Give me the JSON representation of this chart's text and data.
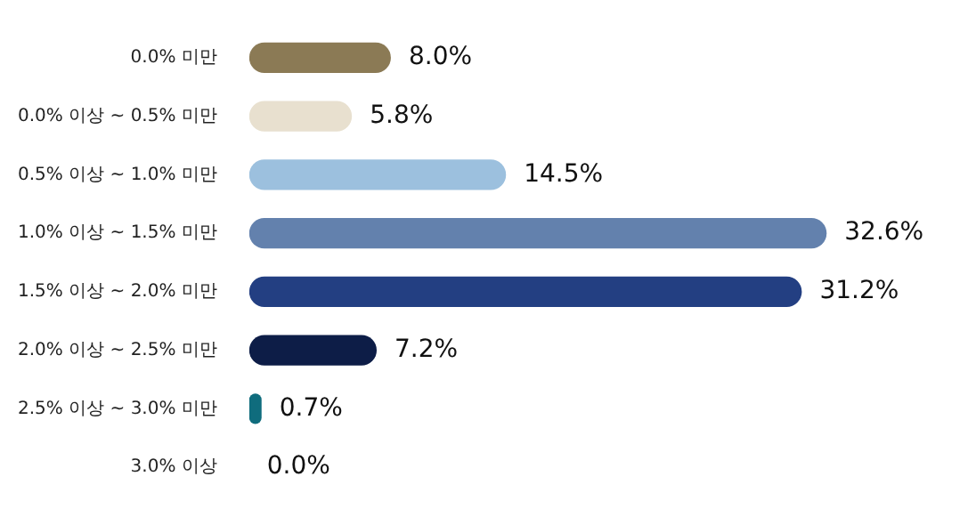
{
  "chart_data": {
    "type": "bar",
    "orientation": "horizontal",
    "data_labels": true,
    "legend": false,
    "grid": false,
    "tick_labels": "y",
    "categories": [
      "0.0% 미만",
      "0.0% 이상 ~ 0.5% 미만",
      "0.5% 이상 ~ 1.0% 미만",
      "1.0% 이상 ~ 1.5% 미만",
      "1.5% 이상 ~ 2.0% 미만",
      "2.0% 이상 ~ 2.5% 미만",
      "2.5% 이상 ~ 3.0% 미만",
      "3.0% 이상"
    ],
    "values": [
      8.0,
      5.8,
      14.5,
      32.6,
      31.2,
      7.2,
      0.7,
      0.0
    ],
    "value_labels": [
      "8.0%",
      "5.8%",
      "14.5%",
      "32.6%",
      "31.2%",
      "7.2%",
      "0.7%",
      "0.0%"
    ],
    "colors": [
      "#8b7a55",
      "#e8e0cf",
      "#9cc0de",
      "#6381ad",
      "#233f82",
      "#0d1d47",
      "#0f6c7d",
      "#9cc0de"
    ]
  }
}
